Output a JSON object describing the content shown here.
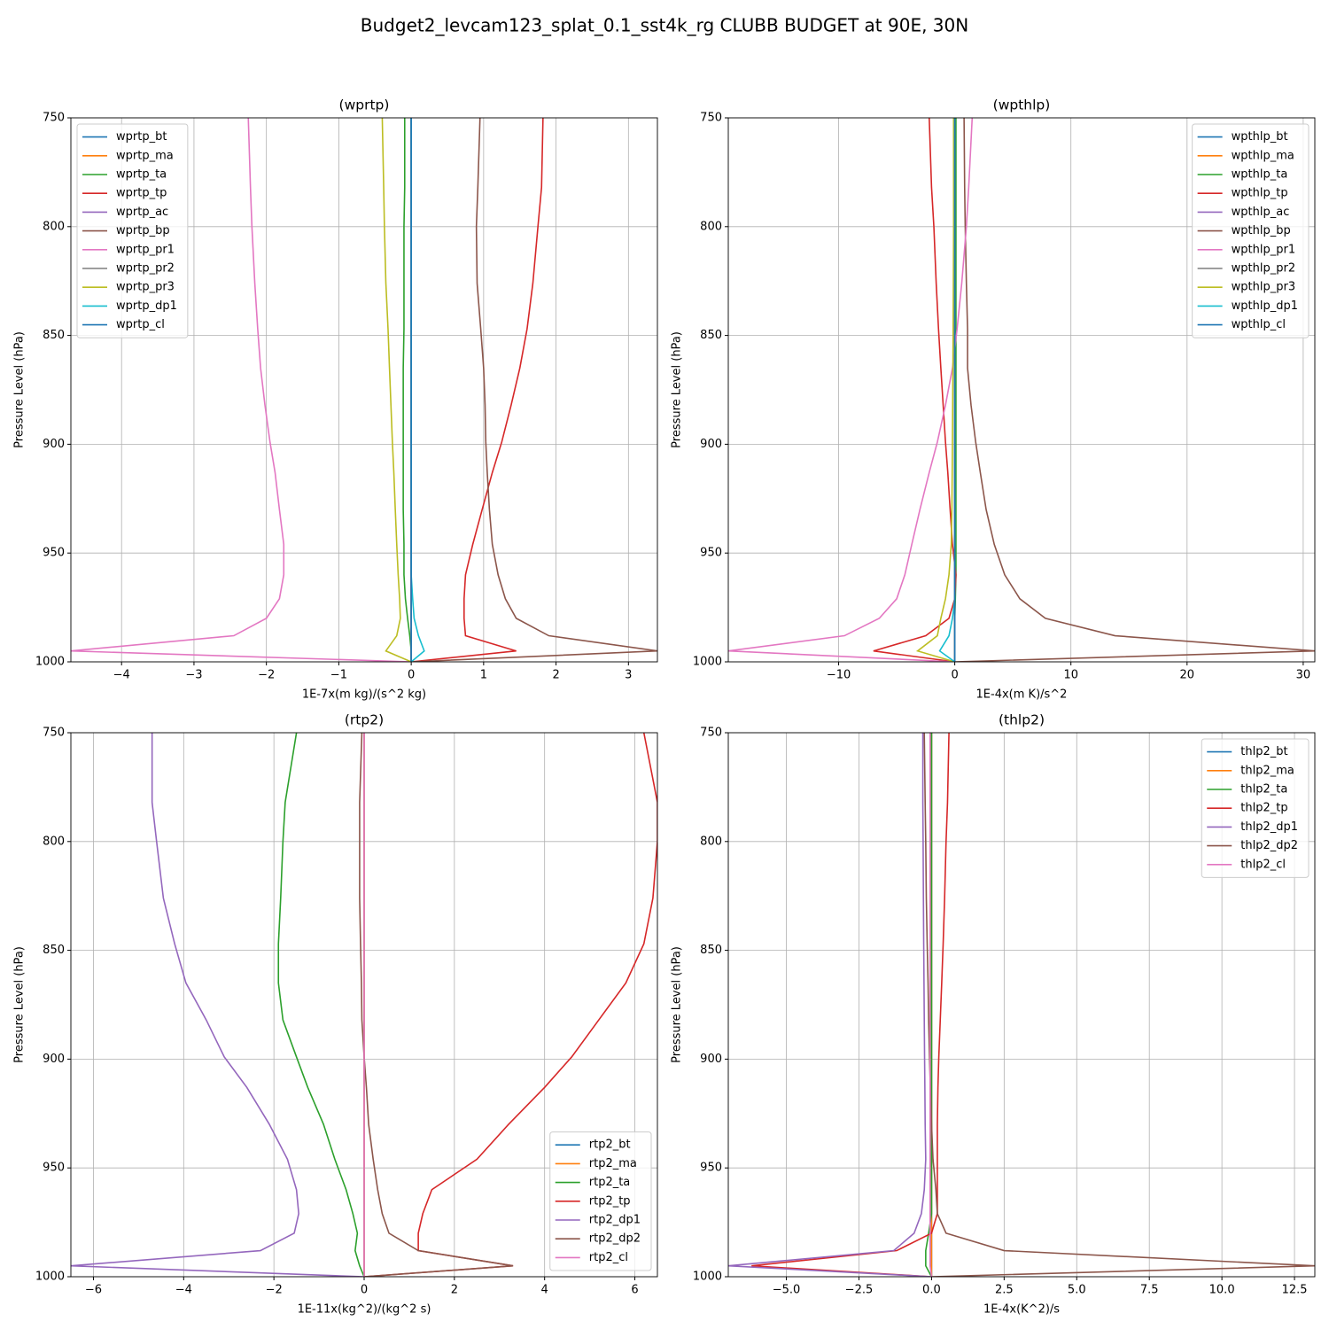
{
  "title": "Budget2_levcam123_splat_0.1_sst4k_rg CLUBB BUDGET at 90E, 30N",
  "chart_data": [
    {
      "type": "line",
      "title": "(wprtp)",
      "xlabel": "1E-7x(m kg)/(s^2 kg)",
      "ylabel": "Pressure Level (hPa)",
      "xlim": [
        -4.7,
        3.4
      ],
      "xticks": [
        {
          "value": -4,
          "label": "−4"
        },
        {
          "value": -3,
          "label": "−3"
        },
        {
          "value": -2,
          "label": "−2"
        },
        {
          "value": -1,
          "label": "−1"
        },
        0,
        1,
        2,
        3
      ],
      "ylim": [
        1000,
        750
      ],
      "yticks": [
        750,
        800,
        850,
        900,
        950,
        1000
      ],
      "grid": true,
      "legend": "upper left",
      "y": [
        750,
        782,
        800,
        826,
        847,
        865,
        882,
        899,
        913,
        930,
        946,
        960,
        971,
        980,
        988,
        995,
        1000
      ],
      "series": [
        {
          "name": "wprtp_bt",
          "color": "#1f77b4",
          "values": [
            0,
            0,
            0,
            0,
            0,
            0,
            0,
            0,
            0,
            0,
            0,
            0,
            0,
            0,
            0,
            0,
            0
          ]
        },
        {
          "name": "wprtp_ma",
          "color": "#ff7f0e",
          "values": [
            0,
            0,
            0,
            0,
            0,
            0,
            0,
            0,
            0,
            0,
            0,
            0,
            0,
            0,
            0,
            0,
            0
          ]
        },
        {
          "name": "wprtp_ta",
          "color": "#2ca02c",
          "values": [
            -0.09,
            -0.09,
            -0.1,
            -0.1,
            -0.1,
            -0.11,
            -0.11,
            -0.11,
            -0.11,
            -0.11,
            -0.1,
            -0.1,
            -0.08,
            -0.05,
            -0.02,
            0,
            0
          ]
        },
        {
          "name": "wprtp_tp",
          "color": "#d62728",
          "values": [
            1.82,
            1.8,
            1.75,
            1.68,
            1.6,
            1.5,
            1.38,
            1.25,
            1.12,
            0.98,
            0.85,
            0.75,
            0.73,
            0.73,
            0.75,
            1.45,
            0
          ]
        },
        {
          "name": "wprtp_ac",
          "color": "#9467bd",
          "values": [
            0,
            0,
            0,
            0,
            0,
            0,
            0,
            0,
            0,
            0,
            0,
            0,
            0,
            0,
            0,
            0,
            0
          ]
        },
        {
          "name": "wprtp_bp",
          "color": "#8c564b",
          "values": [
            0.95,
            0.92,
            0.9,
            0.91,
            0.96,
            1.0,
            1.02,
            1.03,
            1.05,
            1.08,
            1.12,
            1.2,
            1.3,
            1.45,
            1.9,
            3.4,
            0
          ]
        },
        {
          "name": "wprtp_pr1",
          "color": "#e377c2",
          "values": [
            -2.25,
            -2.22,
            -2.2,
            -2.16,
            -2.12,
            -2.08,
            -2.02,
            -1.95,
            -1.88,
            -1.82,
            -1.76,
            -1.76,
            -1.82,
            -2.0,
            -2.45,
            -4.7,
            0
          ]
        },
        {
          "name": "wprtp_pr2",
          "color": "#7f7f7f",
          "values": [
            0,
            0,
            0,
            0,
            0,
            0,
            0,
            0,
            0,
            0,
            0,
            0,
            0,
            0,
            0,
            0,
            0
          ]
        },
        {
          "name": "wprtp_pr3",
          "color": "#bcbd22",
          "values": [
            -0.4,
            -0.38,
            -0.37,
            -0.35,
            -0.32,
            -0.3,
            -0.28,
            -0.26,
            -0.24,
            -0.22,
            -0.2,
            -0.18,
            -0.16,
            -0.15,
            -0.2,
            -0.35,
            0
          ]
        },
        {
          "name": "wprtp_dp1",
          "color": "#17becf",
          "values": [
            0,
            0,
            0,
            0,
            0,
            0,
            0,
            0,
            0,
            0,
            0,
            0,
            0.02,
            0.04,
            0.1,
            0.18,
            0
          ]
        },
        {
          "name": "wprtp_cl",
          "color": "#1f77b4",
          "values": [
            0,
            0,
            0,
            0,
            0,
            0,
            0,
            0,
            0,
            0,
            0,
            0,
            0,
            0,
            0,
            0,
            0
          ]
        }
      ]
    },
    {
      "type": "line",
      "title": "(wpthlp)",
      "xlabel": "1E-4x(m K)/s^2",
      "ylabel": "Pressure Level (hPa)",
      "xlim": [
        -19.5,
        31
      ],
      "xticks": [
        {
          "value": -10,
          "label": "−10"
        },
        0,
        10,
        20,
        30
      ],
      "ylim": [
        1000,
        750
      ],
      "yticks": [
        750,
        800,
        850,
        900,
        950,
        1000
      ],
      "grid": true,
      "legend": "upper right",
      "y": [
        750,
        782,
        800,
        826,
        847,
        865,
        882,
        899,
        913,
        930,
        946,
        960,
        971,
        980,
        988,
        995,
        1000
      ],
      "series": [
        {
          "name": "wpthlp_bt",
          "color": "#1f77b4",
          "values": [
            0,
            0,
            0,
            0,
            0,
            0,
            0,
            0,
            0,
            0,
            0,
            0,
            0,
            0,
            0,
            0,
            0
          ]
        },
        {
          "name": "wpthlp_ma",
          "color": "#ff7f0e",
          "values": [
            0,
            0,
            0,
            0,
            0,
            0,
            0,
            0,
            0,
            0,
            0,
            0,
            0,
            0,
            0,
            0,
            0
          ]
        },
        {
          "name": "wpthlp_ta",
          "color": "#2ca02c",
          "values": [
            0.1,
            0.1,
            0.1,
            0.1,
            0.1,
            0.1,
            0.1,
            0.1,
            0.1,
            0.1,
            0.1,
            0.1,
            0.05,
            0,
            0,
            0,
            0
          ]
        },
        {
          "name": "wpthlp_tp",
          "color": "#d62728",
          "values": [
            -2.2,
            -2.0,
            -1.8,
            -1.6,
            -1.4,
            -1.2,
            -1.0,
            -0.8,
            -0.6,
            -0.4,
            -0.2,
            0.1,
            0.0,
            -0.5,
            -2.5,
            -7.0,
            0
          ]
        },
        {
          "name": "wpthlp_ac",
          "color": "#9467bd",
          "values": [
            0,
            0,
            0,
            0,
            0,
            0,
            0,
            0,
            0,
            0,
            0,
            0,
            0,
            0,
            0,
            0,
            0
          ]
        },
        {
          "name": "wpthlp_bp",
          "color": "#8c564b",
          "values": [
            0.8,
            0.85,
            0.9,
            1.0,
            1.1,
            1.1,
            1.4,
            1.8,
            2.2,
            2.7,
            3.4,
            4.3,
            5.6,
            7.8,
            13.8,
            31,
            0
          ]
        },
        {
          "name": "wpthlp_pr1",
          "color": "#e377c2",
          "values": [
            1.5,
            1.2,
            1.0,
            0.6,
            0.2,
            -0.2,
            -0.8,
            -1.5,
            -2.2,
            -3.0,
            -3.7,
            -4.3,
            -5.0,
            -6.5,
            -9.5,
            -19.5,
            0
          ]
        },
        {
          "name": "wpthlp_pr2",
          "color": "#7f7f7f",
          "values": [
            0,
            0,
            0,
            0,
            0,
            0,
            0,
            0,
            0,
            0,
            0,
            0,
            0,
            0,
            0,
            0,
            0
          ]
        },
        {
          "name": "wpthlp_pr3",
          "color": "#bcbd22",
          "values": [
            -0.1,
            -0.1,
            -0.1,
            -0.12,
            -0.14,
            -0.16,
            -0.18,
            -0.2,
            -0.22,
            -0.25,
            -0.3,
            -0.5,
            -0.8,
            -1.2,
            -1.5,
            -3.2,
            0
          ]
        },
        {
          "name": "wpthlp_dp1",
          "color": "#17becf",
          "values": [
            0,
            0,
            0,
            0,
            0,
            0,
            0,
            0,
            0,
            0,
            0,
            0,
            0,
            -0.2,
            -0.5,
            -1.3,
            0
          ]
        },
        {
          "name": "wpthlp_cl",
          "color": "#1f77b4",
          "values": [
            0,
            0,
            0,
            0,
            0,
            0,
            0,
            0,
            0,
            0,
            0,
            0,
            0,
            0,
            0,
            0,
            0
          ]
        }
      ]
    },
    {
      "type": "line",
      "title": "(rtp2)",
      "xlabel": "1E-11x(kg^2)/(kg^2 s)",
      "ylabel": "Pressure Level (hPa)",
      "xlim": [
        -6.5,
        6.5
      ],
      "xticks": [
        {
          "value": -6,
          "label": "−6"
        },
        {
          "value": -4,
          "label": "−4"
        },
        {
          "value": -2,
          "label": "−2"
        },
        0,
        2,
        4,
        6
      ],
      "ylim": [
        1000,
        750
      ],
      "yticks": [
        750,
        800,
        850,
        900,
        950,
        1000
      ],
      "grid": true,
      "legend": "lower right",
      "y": [
        750,
        782,
        800,
        826,
        847,
        865,
        882,
        899,
        913,
        930,
        946,
        960,
        971,
        980,
        988,
        995,
        1000
      ],
      "series": [
        {
          "name": "rtp2_bt",
          "color": "#1f77b4",
          "values": [
            0,
            0,
            0,
            0,
            0,
            0,
            0,
            0,
            0,
            0,
            0,
            0,
            0,
            0,
            0,
            0,
            0
          ]
        },
        {
          "name": "rtp2_ma",
          "color": "#ff7f0e",
          "values": [
            0,
            0,
            0,
            0,
            0,
            0,
            0,
            0,
            0,
            0,
            0,
            0,
            0,
            0,
            0,
            0,
            0
          ]
        },
        {
          "name": "rtp2_ta",
          "color": "#2ca02c",
          "values": [
            -1.5,
            -1.75,
            -1.8,
            -1.85,
            -1.9,
            -1.9,
            -1.8,
            -1.5,
            -1.25,
            -0.9,
            -0.65,
            -0.4,
            -0.25,
            -0.15,
            -0.2,
            -0.1,
            0
          ]
        },
        {
          "name": "rtp2_tp",
          "color": "#d62728",
          "values": [
            6.2,
            6.5,
            6.5,
            6.4,
            6.2,
            5.8,
            5.2,
            4.6,
            4.0,
            3.2,
            2.5,
            1.5,
            1.3,
            1.2,
            1.2,
            3.3,
            0
          ]
        },
        {
          "name": "rtp2_dp1",
          "color": "#9467bd",
          "values": [
            -4.7,
            -4.7,
            -4.6,
            -4.45,
            -4.2,
            -3.95,
            -3.5,
            -3.1,
            -2.6,
            -2.1,
            -1.7,
            -1.5,
            -1.45,
            -1.55,
            -2.3,
            -6.5,
            0
          ]
        },
        {
          "name": "rtp2_dp2",
          "color": "#8c564b",
          "values": [
            -0.05,
            -0.1,
            -0.1,
            -0.1,
            -0.08,
            -0.06,
            -0.05,
            0,
            0.05,
            0.1,
            0.2,
            0.3,
            0.4,
            0.55,
            1.2,
            3.3,
            0
          ]
        },
        {
          "name": "rtp2_cl",
          "color": "#e377c2",
          "values": [
            0,
            0,
            0,
            0,
            0,
            0,
            0,
            0,
            0,
            0,
            0,
            0,
            0,
            0,
            0,
            0,
            0
          ]
        }
      ]
    },
    {
      "type": "line",
      "title": "(thlp2)",
      "xlabel": "1E-4x(K^2)/s",
      "ylabel": "Pressure Level (hPa)",
      "xlim": [
        -7,
        13.2
      ],
      "xticks": [
        {
          "value": -5,
          "label": "−5.0"
        },
        {
          "value": -2.5,
          "label": "−2.5"
        },
        {
          "value": 0,
          "label": "0.0"
        },
        2.5,
        {
          "value": 5,
          "label": "5.0"
        },
        7.5,
        {
          "value": 10,
          "label": "10.0"
        },
        12.5
      ],
      "ylim": [
        1000,
        750
      ],
      "yticks": [
        750,
        800,
        850,
        900,
        950,
        1000
      ],
      "grid": true,
      "legend": "upper right",
      "y": [
        750,
        782,
        800,
        826,
        847,
        865,
        882,
        899,
        913,
        930,
        946,
        960,
        971,
        980,
        988,
        995,
        1000
      ],
      "series": [
        {
          "name": "thlp2_bt",
          "color": "#1f77b4",
          "values": [
            0,
            0,
            0,
            0,
            0,
            0,
            0,
            0,
            0,
            0,
            0,
            0,
            0,
            0,
            0,
            0,
            0
          ]
        },
        {
          "name": "thlp2_ma",
          "color": "#ff7f0e",
          "values": [
            0,
            0,
            0,
            0,
            0,
            0,
            0,
            0,
            0,
            0,
            0,
            0,
            0,
            0,
            0,
            0,
            0
          ]
        },
        {
          "name": "thlp2_ta",
          "color": "#2ca02c",
          "values": [
            0,
            0,
            0,
            0,
            0,
            0,
            0,
            0,
            0,
            0,
            0,
            0,
            0,
            -0.1,
            -0.2,
            -0.2,
            0
          ]
        },
        {
          "name": "thlp2_tp",
          "color": "#d62728",
          "values": [
            0.6,
            0.55,
            0.5,
            0.45,
            0.4,
            0.35,
            0.3,
            0.25,
            0.22,
            0.2,
            0.2,
            0.2,
            0.2,
            0.0,
            -1.2,
            -6.2,
            0
          ]
        },
        {
          "name": "thlp2_dp1",
          "color": "#9467bd",
          "values": [
            -0.3,
            -0.3,
            -0.29,
            -0.28,
            -0.27,
            -0.26,
            -0.25,
            -0.24,
            -0.23,
            -0.22,
            -0.2,
            -0.25,
            -0.35,
            -0.6,
            -1.3,
            -7.0,
            0
          ]
        },
        {
          "name": "thlp2_dp2",
          "color": "#8c564b",
          "values": [
            -0.25,
            -0.22,
            -0.2,
            -0.18,
            -0.15,
            -0.12,
            -0.1,
            -0.07,
            -0.04,
            0,
            0.05,
            0.15,
            0.2,
            0.5,
            2.5,
            13.2,
            0
          ]
        },
        {
          "name": "thlp2_cl",
          "color": "#e377c2",
          "values": [
            -0.05,
            -0.05,
            -0.05,
            -0.05,
            -0.05,
            -0.05,
            -0.05,
            -0.05,
            -0.05,
            -0.05,
            -0.05,
            -0.05,
            -0.05,
            -0.05,
            -0.05,
            -0.05,
            0
          ]
        }
      ]
    }
  ]
}
